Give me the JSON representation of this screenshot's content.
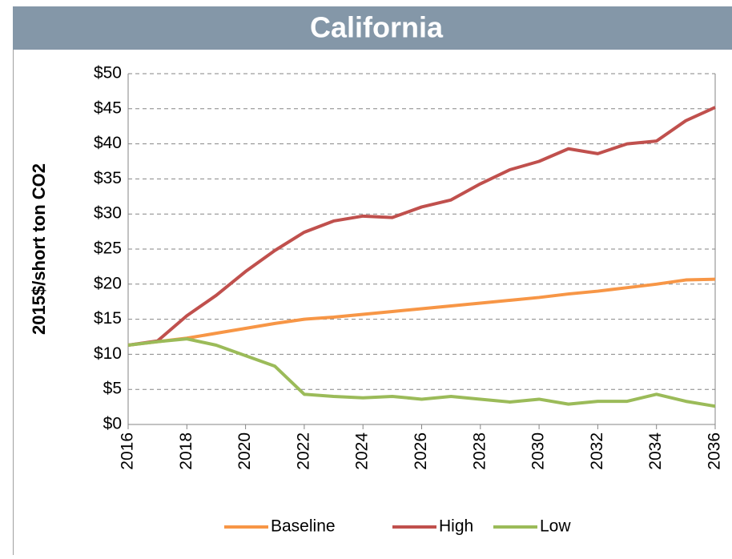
{
  "chart_data": {
    "type": "line",
    "title": "California",
    "y_label": "2015$/short ton CO2",
    "x": [
      2016,
      2017,
      2018,
      2019,
      2020,
      2021,
      2022,
      2023,
      2024,
      2025,
      2026,
      2027,
      2028,
      2029,
      2030,
      2031,
      2032,
      2033,
      2034,
      2035,
      2036
    ],
    "series": [
      {
        "name": "Baseline",
        "color": "#f79646",
        "values": [
          11.3,
          11.8,
          12.3,
          13.0,
          13.7,
          14.4,
          15.0,
          15.3,
          15.7,
          16.1,
          16.5,
          16.9,
          17.3,
          17.7,
          18.1,
          18.6,
          19.0,
          19.5,
          20.0,
          20.6,
          20.7
        ]
      },
      {
        "name": "High",
        "color": "#c0504d",
        "values": [
          11.3,
          11.9,
          15.5,
          18.4,
          21.8,
          24.8,
          27.4,
          29.0,
          29.7,
          29.5,
          31.0,
          32.0,
          34.3,
          36.3,
          37.5,
          39.3,
          38.6,
          40.0,
          40.4,
          43.3,
          45.2
        ]
      },
      {
        "name": "Low",
        "color": "#9bbb59",
        "values": [
          11.3,
          11.8,
          12.2,
          11.3,
          9.8,
          8.3,
          4.3,
          4.0,
          3.8,
          4.0,
          3.6,
          4.0,
          3.6,
          3.2,
          3.6,
          2.9,
          3.3,
          3.3,
          4.3,
          3.3,
          2.6
        ]
      }
    ],
    "xlim": [
      2016,
      2036
    ],
    "xticks": [
      2016,
      2018,
      2020,
      2022,
      2024,
      2026,
      2028,
      2030,
      2032,
      2034,
      2036
    ],
    "ylim": [
      0,
      50
    ],
    "yticks": [
      {
        "value": 0,
        "label": "$0"
      },
      {
        "value": 5,
        "label": "$5"
      },
      {
        "value": 10,
        "label": "$10"
      },
      {
        "value": 15,
        "label": "$15"
      },
      {
        "value": 20,
        "label": "$20"
      },
      {
        "value": 25,
        "label": "$25"
      },
      {
        "value": 30,
        "label": "$30"
      },
      {
        "value": 35,
        "label": "$35"
      },
      {
        "value": 40,
        "label": "$40"
      },
      {
        "value": 45,
        "label": "$45"
      },
      {
        "value": 50,
        "label": "$50"
      }
    ],
    "grid": true,
    "legend": "bottom"
  }
}
